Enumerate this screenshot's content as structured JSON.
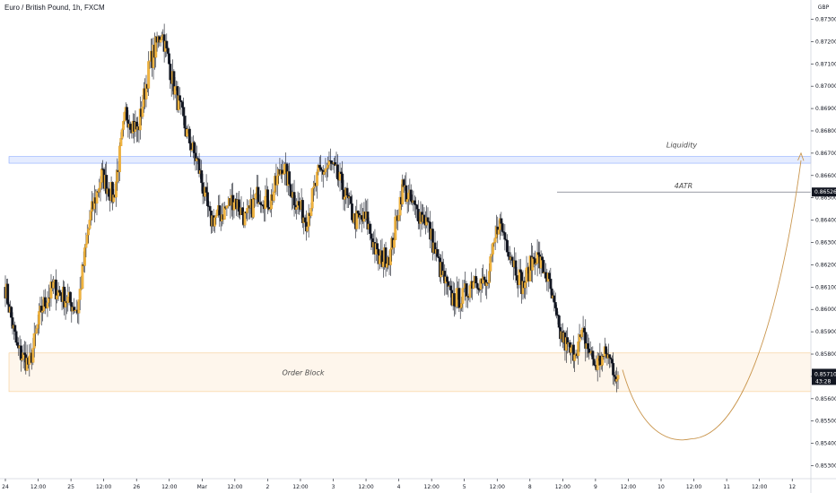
{
  "header": {
    "title": "Euro / British Pound, 1h, FXCM"
  },
  "chart_data": {
    "type": "candlestick",
    "title": "Euro / British Pound, 1h, FXCM",
    "currency_label": "GBP",
    "ylim": [
      0.8525,
      0.8735
    ],
    "y_ticks": [
      "0.87300",
      "0.87200",
      "0.87100",
      "0.87000",
      "0.86900",
      "0.86800",
      "0.86700",
      "0.86600",
      "0.86500",
      "0.86400",
      "0.86300",
      "0.86200",
      "0.86100",
      "0.86000",
      "0.85900",
      "0.85800",
      "0.85700",
      "0.85600",
      "0.85500",
      "0.85400",
      "0.85300"
    ],
    "x_ticks": [
      "24",
      "12:00",
      "25",
      "12:00",
      "26",
      "12:00",
      "Mar",
      "12:00",
      "2",
      "12:00",
      "3",
      "12:00",
      "4",
      "12:00",
      "5",
      "12:00",
      "8",
      "12:00",
      "9",
      "12:00",
      "10",
      "12:00",
      "11",
      "12:00",
      "12"
    ],
    "anchors": [
      0.861,
      0.8582,
      0.8575,
      0.86,
      0.861,
      0.8605,
      0.86,
      0.864,
      0.866,
      0.865,
      0.8688,
      0.868,
      0.871,
      0.8725,
      0.87,
      0.868,
      0.8665,
      0.864,
      0.8643,
      0.865,
      0.864,
      0.8652,
      0.8648,
      0.8665,
      0.865,
      0.864,
      0.866,
      0.8665,
      0.8655,
      0.864,
      0.864,
      0.8622,
      0.8625,
      0.8655,
      0.8645,
      0.864,
      0.862,
      0.8605,
      0.8605,
      0.8615,
      0.861,
      0.864,
      0.8625,
      0.861,
      0.8625,
      0.8615,
      0.859,
      0.858,
      0.8588,
      0.8575,
      0.858,
      0.8568
    ],
    "current_price": "0.85710",
    "countdown": "43:28",
    "atr_level": "0.86526",
    "zones": [
      {
        "label": "Liquidity",
        "top": 0.86685,
        "bottom": 0.86655,
        "color": "#2962ff"
      },
      {
        "label": "Order Block",
        "top": 0.85805,
        "bottom": 0.85632,
        "color": "#f0a030"
      }
    ],
    "levels": [
      {
        "label": "4ATR",
        "price": 0.86526
      }
    ],
    "projection": {
      "type": "curve",
      "from_price": 0.8573,
      "low_price": 0.8542,
      "to_price": 0.867
    },
    "colors": {
      "up": "#f0b440",
      "down": "#131722",
      "tag_current": "#131722",
      "tag_atr": "#131722",
      "curve": "#c9954c"
    }
  }
}
